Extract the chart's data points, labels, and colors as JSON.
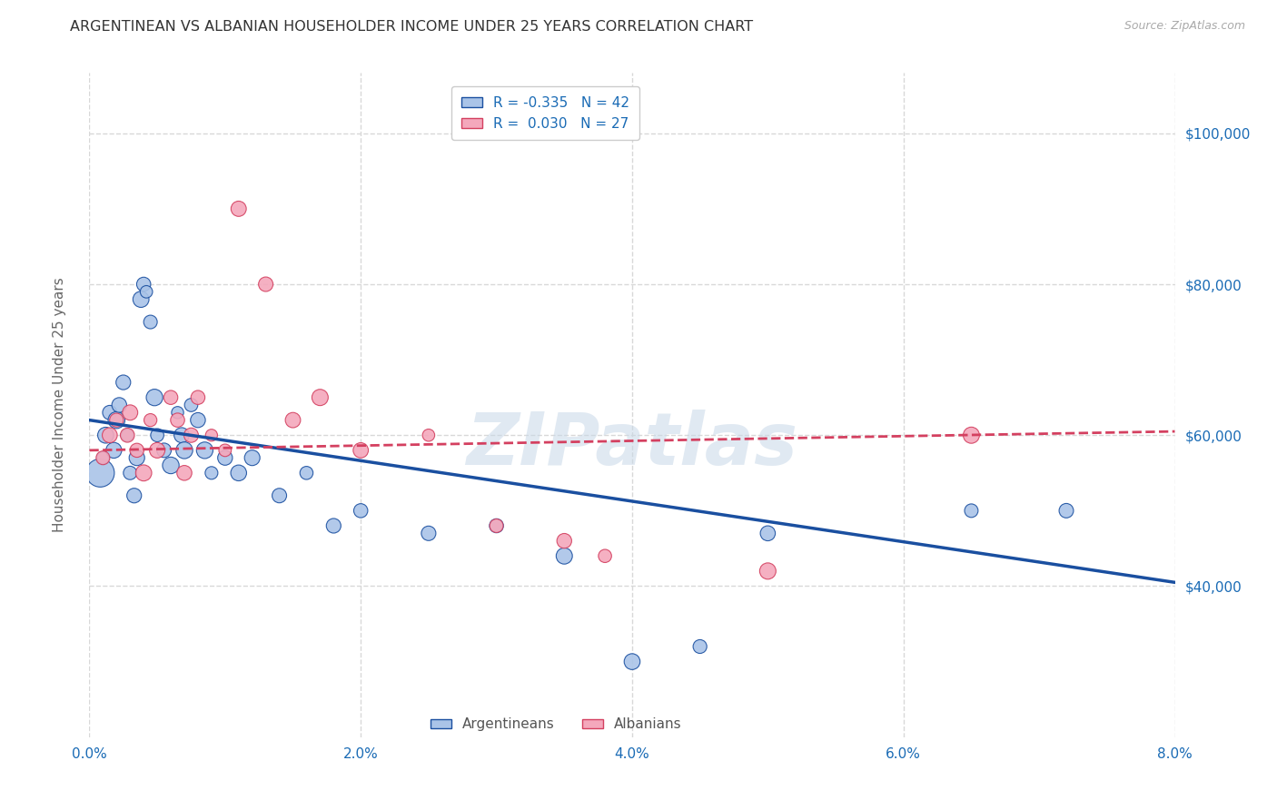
{
  "title": "ARGENTINEAN VS ALBANIAN HOUSEHOLDER INCOME UNDER 25 YEARS CORRELATION CHART",
  "source": "Source: ZipAtlas.com",
  "ylabel": "Householder Income Under 25 years",
  "xlim": [
    0.0,
    0.08
  ],
  "ylim": [
    20000,
    108000
  ],
  "yticks": [
    40000,
    60000,
    80000,
    100000
  ],
  "ytick_labels": [
    "$40,000",
    "$60,000",
    "$80,000",
    "$100,000"
  ],
  "xticks": [
    0.0,
    0.02,
    0.04,
    0.06,
    0.08
  ],
  "xtick_labels": [
    "0.0%",
    "2.0%",
    "4.0%",
    "6.0%",
    "8.0%"
  ],
  "background_color": "#ffffff",
  "grid_color": "#d8d8d8",
  "legend_R_arg": "-0.335",
  "legend_N_arg": "42",
  "legend_R_alb": "0.030",
  "legend_N_alb": "27",
  "argentinean_color": "#aac4e8",
  "albanian_color": "#f4a8bc",
  "arg_line_color": "#1a4fa0",
  "alb_line_color": "#d44060",
  "axis_color": "#1a6bb5",
  "argentinean_x": [
    0.0008,
    0.001,
    0.0012,
    0.0015,
    0.0018,
    0.002,
    0.0022,
    0.0025,
    0.0028,
    0.003,
    0.0033,
    0.0035,
    0.0038,
    0.004,
    0.0042,
    0.0045,
    0.0048,
    0.005,
    0.0055,
    0.006,
    0.0065,
    0.0068,
    0.007,
    0.0075,
    0.008,
    0.0085,
    0.009,
    0.01,
    0.011,
    0.012,
    0.014,
    0.016,
    0.018,
    0.02,
    0.025,
    0.03,
    0.035,
    0.04,
    0.045,
    0.05,
    0.065,
    0.072
  ],
  "argentinean_y": [
    55000,
    57000,
    60000,
    63000,
    58000,
    62000,
    64000,
    67000,
    60000,
    55000,
    52000,
    57000,
    78000,
    80000,
    79000,
    75000,
    65000,
    60000,
    58000,
    56000,
    63000,
    60000,
    58000,
    64000,
    62000,
    58000,
    55000,
    57000,
    55000,
    57000,
    52000,
    55000,
    48000,
    50000,
    47000,
    48000,
    44000,
    30000,
    32000,
    47000,
    50000,
    50000
  ],
  "albanian_x": [
    0.001,
    0.0015,
    0.002,
    0.0028,
    0.003,
    0.0035,
    0.004,
    0.0045,
    0.005,
    0.006,
    0.0065,
    0.007,
    0.0075,
    0.008,
    0.009,
    0.01,
    0.011,
    0.013,
    0.015,
    0.017,
    0.02,
    0.025,
    0.03,
    0.035,
    0.038,
    0.05,
    0.065
  ],
  "albanian_y": [
    57000,
    60000,
    62000,
    60000,
    63000,
    58000,
    55000,
    62000,
    58000,
    65000,
    62000,
    55000,
    60000,
    65000,
    60000,
    58000,
    90000,
    80000,
    62000,
    65000,
    58000,
    60000,
    48000,
    46000,
    44000,
    42000,
    60000
  ],
  "arg_line_x0": 0.0,
  "arg_line_y0": 62000,
  "arg_line_x1": 0.08,
  "arg_line_y1": 40500,
  "alb_line_x0": 0.0,
  "alb_line_y0": 58000,
  "alb_line_x1": 0.08,
  "alb_line_y1": 60500,
  "arg_bubble_size": 500,
  "dot_size_base": 120
}
